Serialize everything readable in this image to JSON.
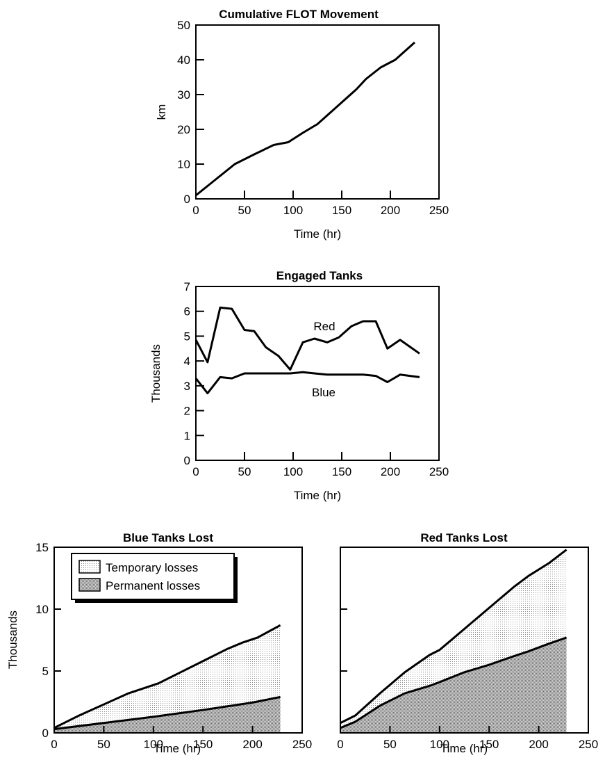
{
  "chart_data": [
    {
      "id": "flot",
      "type": "line",
      "title": "Cumulative FLOT Movement",
      "xlabel": "Time (hr)",
      "ylabel": "km",
      "xlim": [
        0,
        250
      ],
      "ylim": [
        0,
        50
      ],
      "xticks": [
        0,
        50,
        100,
        150,
        200,
        250
      ],
      "yticks": [
        0,
        10,
        20,
        30,
        40,
        50
      ],
      "grid": false,
      "series": [
        {
          "x": [
            0,
            20,
            40,
            60,
            80,
            95,
            110,
            125,
            145,
            165,
            175,
            190,
            205,
            225
          ],
          "y": [
            1,
            5.5,
            10,
            12.8,
            15.5,
            16.3,
            19,
            21.5,
            26.5,
            31.5,
            34.5,
            37.8,
            40,
            45
          ]
        }
      ]
    },
    {
      "id": "engaged",
      "type": "line",
      "title": "Engaged Tanks",
      "xlabel": "Time (hr)",
      "ylabel": "Thousands",
      "xlim": [
        0,
        250
      ],
      "ylim": [
        0,
        7
      ],
      "xticks": [
        0,
        50,
        100,
        150,
        200,
        250
      ],
      "yticks": [
        0,
        1,
        2,
        3,
        4,
        5,
        6,
        7
      ],
      "grid": false,
      "series": [
        {
          "name": "Red",
          "x": [
            0,
            12,
            25,
            37,
            50,
            60,
            72,
            85,
            97,
            110,
            122,
            135,
            147,
            160,
            172,
            185,
            197,
            210,
            230
          ],
          "y": [
            4.85,
            3.95,
            6.15,
            6.1,
            5.25,
            5.2,
            4.55,
            4.2,
            3.65,
            4.75,
            4.9,
            4.75,
            4.95,
            5.4,
            5.6,
            5.6,
            4.5,
            4.85,
            4.3
          ]
        },
        {
          "name": "Blue",
          "x": [
            0,
            12,
            25,
            37,
            50,
            60,
            72,
            85,
            97,
            110,
            122,
            135,
            147,
            160,
            172,
            185,
            197,
            210,
            230
          ],
          "y": [
            3.3,
            2.7,
            3.35,
            3.3,
            3.5,
            3.5,
            3.5,
            3.5,
            3.5,
            3.55,
            3.5,
            3.45,
            3.45,
            3.45,
            3.45,
            3.4,
            3.15,
            3.45,
            3.35
          ]
        }
      ]
    },
    {
      "id": "blue-lost",
      "type": "area",
      "title": "Blue Tanks Lost",
      "xlabel": "Time (hr)",
      "ylabel": "Thousands",
      "xlim": [
        0,
        250
      ],
      "ylim": [
        0,
        15
      ],
      "xticks": [
        0,
        50,
        100,
        150,
        200,
        250
      ],
      "yticks": [
        0,
        5,
        10,
        15
      ],
      "grid": false,
      "legend": {
        "placement": "top-left",
        "entries": [
          "Temporary losses",
          "Permanent losses"
        ]
      },
      "series": [
        {
          "name": "Temporary losses",
          "x": [
            0,
            25,
            50,
            75,
            90,
            105,
            125,
            150,
            175,
            190,
            205,
            228
          ],
          "y": [
            0.4,
            1.4,
            2.3,
            3.2,
            3.6,
            4.0,
            4.8,
            5.8,
            6.8,
            7.3,
            7.7,
            8.7
          ]
        },
        {
          "name": "Permanent losses",
          "x": [
            0,
            50,
            100,
            150,
            200,
            228
          ],
          "y": [
            0.3,
            0.8,
            1.3,
            1.85,
            2.45,
            2.9
          ]
        }
      ]
    },
    {
      "id": "red-lost",
      "type": "area",
      "title": "Red Tanks Lost",
      "xlabel": "Time (hr)",
      "ylabel": "",
      "xlim": [
        0,
        250
      ],
      "ylim": [
        0,
        15
      ],
      "xticks": [
        0,
        50,
        100,
        150,
        200,
        250
      ],
      "yticks": [
        0,
        5,
        10,
        15
      ],
      "grid": false,
      "series": [
        {
          "name": "Temporary losses",
          "x": [
            0,
            15,
            40,
            65,
            90,
            100,
            125,
            150,
            175,
            190,
            210,
            228
          ],
          "y": [
            0.8,
            1.4,
            3.2,
            4.9,
            6.3,
            6.7,
            8.4,
            10.1,
            11.8,
            12.7,
            13.7,
            14.8
          ]
        },
        {
          "name": "Permanent losses",
          "x": [
            0,
            15,
            40,
            65,
            90,
            100,
            125,
            150,
            175,
            190,
            210,
            228
          ],
          "y": [
            0.4,
            0.9,
            2.2,
            3.2,
            3.8,
            4.1,
            4.9,
            5.5,
            6.2,
            6.6,
            7.2,
            7.7
          ]
        }
      ]
    }
  ]
}
